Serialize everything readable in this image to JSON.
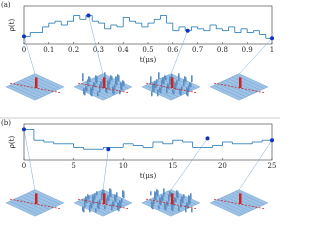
{
  "chart_data": [
    {
      "type": "step",
      "panel_label": "(a)",
      "y_label": "ρ(t)",
      "x_label": "t(μs)",
      "xlim": [
        0,
        1
      ],
      "ylim": [
        0,
        1
      ],
      "xticks": [
        0,
        0.1,
        0.2,
        0.3,
        0.4,
        0.5,
        0.6,
        0.7,
        0.8,
        0.9,
        1
      ],
      "x": [
        0,
        0.025,
        0.05,
        0.075,
        0.1,
        0.125,
        0.15,
        0.175,
        0.2,
        0.225,
        0.25,
        0.275,
        0.3,
        0.325,
        0.35,
        0.375,
        0.4,
        0.425,
        0.45,
        0.475,
        0.5,
        0.525,
        0.55,
        0.575,
        0.6,
        0.625,
        0.65,
        0.675,
        0.7,
        0.725,
        0.75,
        0.775,
        0.8,
        0.825,
        0.85,
        0.875,
        0.9,
        0.925,
        0.95,
        0.975
      ],
      "series": [
        {
          "color": "#1f77b4",
          "values": [
            0.2,
            0.3,
            0.3,
            0.45,
            0.55,
            0.6,
            0.5,
            0.6,
            0.75,
            0.65,
            0.75,
            0.6,
            0.55,
            0.4,
            0.5,
            0.45,
            0.7,
            0.6,
            0.55,
            0.45,
            0.55,
            0.65,
            0.75,
            0.55,
            0.35,
            0.45,
            0.35,
            0.45,
            0.4,
            0.35,
            0.5,
            0.4,
            0.35,
            0.45,
            0.3,
            0.4,
            0.3,
            0.35,
            0.25,
            0.15
          ]
        }
      ],
      "markers": {
        "x": [
          0,
          0.26,
          0.66,
          1
        ],
        "values": [
          0.2,
          0.75,
          0.35,
          0.15
        ],
        "color": "#1133bb"
      }
    },
    {
      "type": "step",
      "panel_label": "(b)",
      "y_label": "ρ(t)",
      "x_label": "t(μs)",
      "xlim": [
        0,
        25
      ],
      "ylim": [
        0,
        1
      ],
      "xticks": [
        0,
        5,
        10,
        15,
        20,
        25
      ],
      "x": [
        0,
        1,
        2,
        3,
        4,
        5,
        6,
        7,
        8,
        9,
        10,
        11,
        12,
        13,
        14,
        15,
        16,
        17,
        18,
        19,
        20,
        21,
        22,
        23,
        24
      ],
      "series": [
        {
          "color": "#1f77b4",
          "values": [
            0.85,
            0.55,
            0.5,
            0.45,
            0.45,
            0.35,
            0.3,
            0.3,
            0.35,
            0.35,
            0.45,
            0.4,
            0.35,
            0.5,
            0.45,
            0.55,
            0.5,
            0.35,
            0.35,
            0.4,
            0.5,
            0.45,
            0.45,
            0.5,
            0.55
          ]
        }
      ],
      "markers": {
        "x": [
          0,
          8.5,
          18.5,
          25
        ],
        "values": [
          0.85,
          0.3,
          0.6,
          0.55
        ],
        "color": "#1133bb"
      }
    }
  ]
}
